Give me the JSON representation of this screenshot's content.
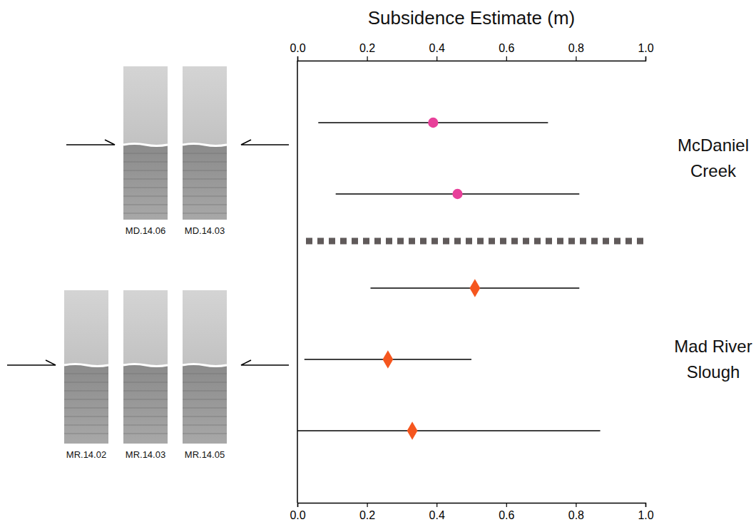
{
  "chart_data": {
    "type": "scatter",
    "orientation": "horizontal",
    "x_label": "Subsidence Estimate (m)",
    "xlim": [
      0,
      1
    ],
    "xticks": [
      {
        "value": 0,
        "label": "0.0"
      },
      {
        "value": 0.2,
        "label": "0.2"
      },
      {
        "value": 0.4,
        "label": "0.4"
      },
      {
        "value": 0.6,
        "label": "0.6"
      },
      {
        "value": 0.8,
        "label": "0.8"
      },
      {
        "value": 1,
        "label": "1.0"
      }
    ],
    "tick_labels": "x",
    "grid": false,
    "series": [
      {
        "name": "McDaniel Creek",
        "color": "#e8409a",
        "marker": "circle",
        "values": [
          0.39,
          0.46
        ],
        "lower": [
          0.06,
          0.11
        ],
        "upper": [
          0.72,
          0.81
        ],
        "cores": [
          "MD.14.06",
          "MD.14.03"
        ]
      },
      {
        "name": "Mad River Slough",
        "color": "#f5561e",
        "marker": "diamond",
        "values": [
          0.51,
          0.26,
          0.33
        ],
        "lower": [
          0.21,
          0.02,
          0.0
        ],
        "upper": [
          0.81,
          0.5,
          0.87
        ],
        "cores": [
          "MR.14.02",
          "MR.14.03",
          "MR.14.05"
        ]
      }
    ]
  }
}
